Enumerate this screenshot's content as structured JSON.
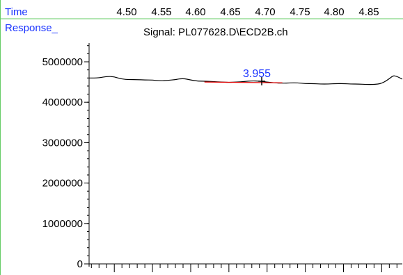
{
  "header": {
    "x_axis_name": "Time",
    "y_axis_name": "Response_",
    "signal_title": "Signal: PL077628.D\\ECD2B.ch"
  },
  "colors": {
    "label_blue": "#1a33ff",
    "separator_green": "#66cc66",
    "trace": "#000000",
    "baseline_red": "#e00000"
  },
  "chart_data": {
    "type": "line",
    "title": "Signal: PL077628.D\\ECD2B.ch",
    "xlabel": "Time",
    "ylabel": "Response_",
    "x_tick_labels": [
      "4.50",
      "4.55",
      "4.60",
      "4.65",
      "4.70",
      "4.75",
      "4.80",
      "4.85"
    ],
    "x_ticks": [
      4.5,
      4.55,
      4.6,
      4.65,
      4.7,
      4.75,
      4.8,
      4.85
    ],
    "xlim": [
      4.467,
      4.877
    ],
    "y_tick_labels": [
      "0",
      "1000000",
      "2000000",
      "3000000",
      "4000000",
      "5000000"
    ],
    "y_ticks": [
      0,
      1000000,
      2000000,
      3000000,
      4000000,
      5000000
    ],
    "ylim": [
      0,
      5400000
    ],
    "grid": false,
    "series": [
      {
        "x": [
          4.467,
          4.48,
          4.49,
          4.5,
          4.51,
          4.52,
          4.53,
          4.54,
          4.55,
          4.56,
          4.57,
          4.58,
          4.59,
          4.6,
          4.61,
          4.62,
          4.63,
          4.64,
          4.65,
          4.66,
          4.67,
          4.68,
          4.69,
          4.7,
          4.71,
          4.72,
          4.73,
          4.74,
          4.75,
          4.76,
          4.77,
          4.78,
          4.79,
          4.8,
          4.81,
          4.82,
          4.83,
          4.84,
          4.85,
          4.86,
          4.865,
          4.87,
          4.877
        ],
        "y": [
          4600000,
          4600000,
          4640000,
          4630000,
          4570000,
          4560000,
          4560000,
          4550000,
          4550000,
          4530000,
          4540000,
          4560000,
          4590000,
          4550000,
          4520000,
          4520000,
          4510000,
          4500000,
          4490000,
          4500000,
          4510000,
          4530000,
          4520000,
          4500000,
          4480000,
          4470000,
          4480000,
          4480000,
          4460000,
          4460000,
          4450000,
          4450000,
          4460000,
          4460000,
          4450000,
          4450000,
          4440000,
          4440000,
          4460000,
          4580000,
          4660000,
          4640000,
          4570000
        ]
      }
    ],
    "peak": {
      "label": "3.955",
      "x": 4.693,
      "y": 4520000
    },
    "baseline": {
      "x": [
        4.618,
        4.72
      ],
      "y": [
        4500000,
        4480000
      ]
    }
  }
}
